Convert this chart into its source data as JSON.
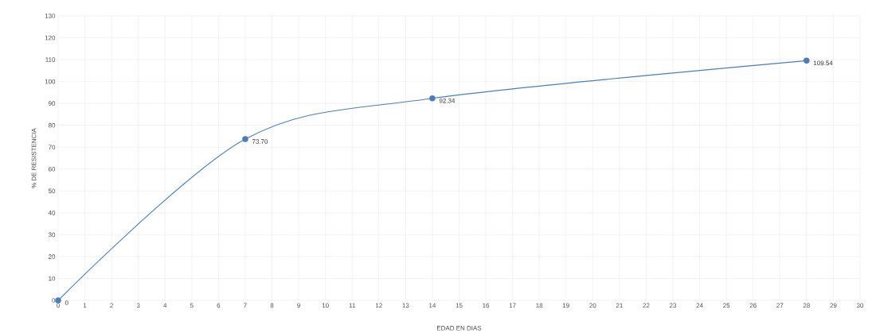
{
  "chart_data": {
    "type": "line",
    "xlabel": "EDAD EN DIAS",
    "ylabel": "% DE RESISTENCIA",
    "x": [
      0,
      7,
      14,
      28
    ],
    "series": [
      {
        "color": "#4a7ebb",
        "values": [
          0,
          73.7,
          92.34,
          109.54
        ],
        "value_labels": [
          "0",
          "73.70",
          "92.34",
          "109.54"
        ]
      }
    ],
    "xlim": [
      0,
      30
    ],
    "xticks": [
      0,
      1,
      2,
      3,
      4,
      5,
      6,
      7,
      8,
      9,
      10,
      11,
      12,
      13,
      14,
      15,
      16,
      17,
      18,
      19,
      20,
      21,
      22,
      23,
      24,
      25,
      26,
      27,
      28,
      29,
      30
    ],
    "ylim": [
      0,
      130
    ],
    "yticks": [
      0,
      10,
      20,
      30,
      40,
      50,
      60,
      70,
      80,
      90,
      100,
      110,
      120,
      130
    ],
    "grid": true,
    "marker": "circle",
    "line_style": "solid"
  }
}
